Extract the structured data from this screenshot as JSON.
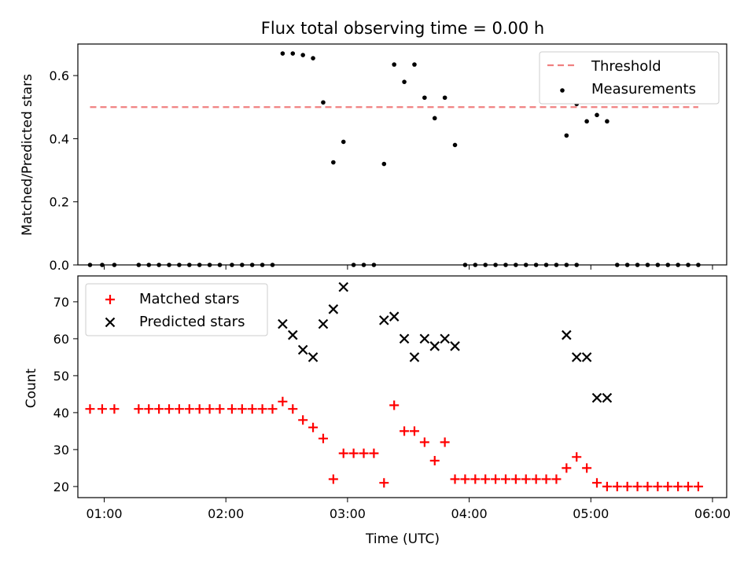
{
  "chart_data": [
    {
      "type": "scatter",
      "title": "Flux total observing time = 0.00 h",
      "xlabel": "",
      "ylabel": "Matched/Predicted stars",
      "xlim": [
        "00:47",
        "06:07"
      ],
      "ylim": [
        0,
        0.7
      ],
      "yticks": [
        "0.0",
        "0.2",
        "0.4",
        "0.6"
      ],
      "grid": false,
      "legend_position": "top-right",
      "threshold": {
        "name": "Threshold",
        "value": 0.5,
        "x_start": "00:53",
        "x_end": "05:53",
        "color": "#f08080",
        "style": "dashed"
      },
      "series": [
        {
          "name": "Measurements",
          "color": "#000000",
          "marker": "dot",
          "points": [
            [
              "00:53",
              0
            ],
            [
              "00:59",
              0
            ],
            [
              "01:05",
              0
            ],
            [
              "01:17",
              0
            ],
            [
              "01:22",
              0
            ],
            [
              "01:27",
              0
            ],
            [
              "01:32",
              0
            ],
            [
              "01:37",
              0
            ],
            [
              "01:42",
              0
            ],
            [
              "01:47",
              0
            ],
            [
              "01:52",
              0
            ],
            [
              "01:57",
              0
            ],
            [
              "02:03",
              0
            ],
            [
              "02:08",
              0
            ],
            [
              "02:13",
              0
            ],
            [
              "02:18",
              0
            ],
            [
              "02:23",
              0
            ],
            [
              "02:28",
              0.67
            ],
            [
              "02:33",
              0.67
            ],
            [
              "02:38",
              0.665
            ],
            [
              "02:43",
              0.655
            ],
            [
              "02:48",
              0.515
            ],
            [
              "02:53",
              0.325
            ],
            [
              "02:58",
              0.39
            ],
            [
              "03:03",
              0
            ],
            [
              "03:08",
              0
            ],
            [
              "03:13",
              0
            ],
            [
              "03:18",
              0.32
            ],
            [
              "03:23",
              0.635
            ],
            [
              "03:28",
              0.58
            ],
            [
              "03:33",
              0.635
            ],
            [
              "03:38",
              0.53
            ],
            [
              "03:43",
              0.465
            ],
            [
              "03:48",
              0.53
            ],
            [
              "03:53",
              0.38
            ],
            [
              "03:58",
              0
            ],
            [
              "04:03",
              0
            ],
            [
              "04:08",
              0
            ],
            [
              "04:13",
              0
            ],
            [
              "04:18",
              0
            ],
            [
              "04:23",
              0
            ],
            [
              "04:28",
              0
            ],
            [
              "04:33",
              0
            ],
            [
              "04:38",
              0
            ],
            [
              "04:43",
              0
            ],
            [
              "04:48",
              0
            ],
            [
              "04:53",
              0
            ],
            [
              "04:48",
              0.41
            ],
            [
              "04:53",
              0.51
            ],
            [
              "04:58",
              0.455
            ],
            [
              "05:03",
              0.475
            ],
            [
              "05:08",
              0.455
            ],
            [
              "05:13",
              0
            ],
            [
              "05:18",
              0
            ],
            [
              "05:23",
              0
            ],
            [
              "05:28",
              0
            ],
            [
              "05:33",
              0
            ],
            [
              "05:38",
              0
            ],
            [
              "05:43",
              0
            ],
            [
              "05:48",
              0
            ],
            [
              "05:53",
              0
            ]
          ]
        }
      ]
    },
    {
      "type": "scatter",
      "title": "",
      "xlabel": "Time (UTC)",
      "ylabel": "Count",
      "xlim": [
        "00:47",
        "06:07"
      ],
      "ylim": [
        17,
        77
      ],
      "xticks": [
        "01:00",
        "02:00",
        "03:00",
        "04:00",
        "05:00",
        "06:00"
      ],
      "yticks": [
        "20",
        "30",
        "40",
        "50",
        "60",
        "70"
      ],
      "grid": false,
      "legend_position": "top-left",
      "series": [
        {
          "name": "Matched stars",
          "color": "#ff0000",
          "marker": "plus",
          "points": [
            [
              "00:53",
              41
            ],
            [
              "00:59",
              41
            ],
            [
              "01:05",
              41
            ],
            [
              "01:17",
              41
            ],
            [
              "01:22",
              41
            ],
            [
              "01:27",
              41
            ],
            [
              "01:32",
              41
            ],
            [
              "01:37",
              41
            ],
            [
              "01:42",
              41
            ],
            [
              "01:47",
              41
            ],
            [
              "01:52",
              41
            ],
            [
              "01:57",
              41
            ],
            [
              "02:03",
              41
            ],
            [
              "02:08",
              41
            ],
            [
              "02:13",
              41
            ],
            [
              "02:18",
              41
            ],
            [
              "02:23",
              41
            ],
            [
              "02:28",
              43
            ],
            [
              "02:33",
              41
            ],
            [
              "02:38",
              38
            ],
            [
              "02:43",
              36
            ],
            [
              "02:48",
              33
            ],
            [
              "02:53",
              22
            ],
            [
              "02:58",
              29
            ],
            [
              "03:03",
              29
            ],
            [
              "03:08",
              29
            ],
            [
              "03:13",
              29
            ],
            [
              "03:18",
              21
            ],
            [
              "03:23",
              42
            ],
            [
              "03:28",
              35
            ],
            [
              "03:33",
              35
            ],
            [
              "03:38",
              32
            ],
            [
              "03:43",
              27
            ],
            [
              "03:48",
              32
            ],
            [
              "03:53",
              22
            ],
            [
              "03:58",
              22
            ],
            [
              "04:03",
              22
            ],
            [
              "04:08",
              22
            ],
            [
              "04:13",
              22
            ],
            [
              "04:18",
              22
            ],
            [
              "04:23",
              22
            ],
            [
              "04:28",
              22
            ],
            [
              "04:33",
              22
            ],
            [
              "04:38",
              22
            ],
            [
              "04:43",
              22
            ],
            [
              "04:48",
              25
            ],
            [
              "04:53",
              28
            ],
            [
              "04:58",
              25
            ],
            [
              "05:03",
              21
            ],
            [
              "05:08",
              20
            ],
            [
              "05:13",
              20
            ],
            [
              "05:18",
              20
            ],
            [
              "05:23",
              20
            ],
            [
              "05:28",
              20
            ],
            [
              "05:33",
              20
            ],
            [
              "05:38",
              20
            ],
            [
              "05:43",
              20
            ],
            [
              "05:48",
              20
            ],
            [
              "05:53",
              20
            ]
          ]
        },
        {
          "name": "Predicted stars",
          "color": "#000000",
          "marker": "x",
          "points": [
            [
              "02:28",
              64
            ],
            [
              "02:33",
              61
            ],
            [
              "02:38",
              57
            ],
            [
              "02:43",
              55
            ],
            [
              "02:48",
              64
            ],
            [
              "02:53",
              68
            ],
            [
              "02:58",
              74
            ],
            [
              "03:18",
              65
            ],
            [
              "03:23",
              66
            ],
            [
              "03:28",
              60
            ],
            [
              "03:33",
              55
            ],
            [
              "03:38",
              60
            ],
            [
              "03:43",
              58
            ],
            [
              "03:48",
              60
            ],
            [
              "03:53",
              58
            ],
            [
              "04:48",
              61
            ],
            [
              "04:53",
              55
            ],
            [
              "04:58",
              55
            ],
            [
              "05:03",
              44
            ],
            [
              "05:08",
              44
            ]
          ]
        }
      ]
    }
  ]
}
